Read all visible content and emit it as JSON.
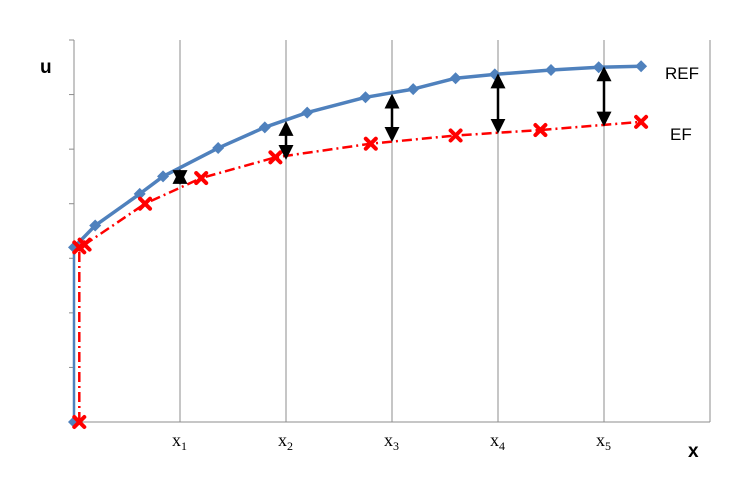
{
  "chart_data": {
    "type": "line",
    "xlabel": "x",
    "ylabel": "u",
    "xlim": [
      0,
      6
    ],
    "ylim": [
      0,
      7
    ],
    "grid": "vertical",
    "x_ticks": [
      {
        "base": "x",
        "sub": "1",
        "value": 1
      },
      {
        "base": "x",
        "sub": "2",
        "value": 2
      },
      {
        "base": "x",
        "sub": "3",
        "value": 3
      },
      {
        "base": "x",
        "sub": "4",
        "value": 4
      },
      {
        "base": "x",
        "sub": "5",
        "value": 5
      }
    ],
    "series": [
      {
        "name": "REF",
        "color": "#4F81BD",
        "marker": "diamond",
        "line": "solid",
        "points": [
          [
            0.0,
            3.2
          ],
          [
            0.2,
            3.6
          ],
          [
            0.62,
            4.18
          ],
          [
            0.84,
            4.5
          ],
          [
            1.36,
            5.02
          ],
          [
            1.8,
            5.4
          ],
          [
            2.2,
            5.67
          ],
          [
            2.75,
            5.95
          ],
          [
            3.2,
            6.1
          ],
          [
            3.6,
            6.3
          ],
          [
            3.97,
            6.37
          ],
          [
            4.5,
            6.45
          ],
          [
            4.95,
            6.5
          ],
          [
            5.35,
            6.52
          ]
        ]
      },
      {
        "name": "EF",
        "color": "#FF0000",
        "marker": "x",
        "line": "dashdot",
        "points": [
          [
            0.05,
            0.0
          ],
          [
            0.05,
            3.2
          ],
          [
            0.1,
            3.25
          ],
          [
            0.67,
            4.0
          ],
          [
            1.2,
            4.47
          ],
          [
            1.9,
            4.85
          ],
          [
            2.8,
            5.1
          ],
          [
            3.6,
            5.25
          ],
          [
            4.4,
            5.35
          ],
          [
            5.35,
            5.5
          ]
        ]
      }
    ],
    "ref_first_segment": [
      [
        0.0,
        0.0
      ],
      [
        0.0,
        3.2
      ]
    ],
    "difference_arrows": [
      {
        "x": 1.0,
        "top": 4.62,
        "bottom": 4.36
      },
      {
        "x": 2.0,
        "top": 5.5,
        "bottom": 4.82
      },
      {
        "x": 3.0,
        "top": 6.0,
        "bottom": 5.15
      },
      {
        "x": 4.0,
        "top": 6.37,
        "bottom": 5.3
      },
      {
        "x": 5.0,
        "top": 6.5,
        "bottom": 5.43
      }
    ]
  }
}
